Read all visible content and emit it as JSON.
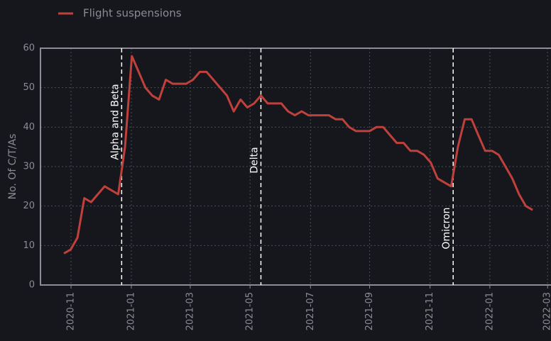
{
  "chart_data": {
    "type": "line",
    "ylabel": "No. Of C/T/As",
    "series": [
      {
        "name": "Flight suspensions",
        "color": "#c0403c",
        "values": [
          8,
          9,
          12,
          22,
          21,
          23,
          25,
          24,
          23,
          35,
          58,
          54,
          50,
          48,
          47,
          52,
          51,
          51,
          51,
          52,
          54,
          54,
          52,
          50,
          48,
          44,
          47,
          45,
          46,
          48,
          46,
          46,
          46,
          44,
          43,
          44,
          43,
          43,
          43,
          43,
          42,
          42,
          40,
          39,
          39,
          39,
          40,
          40,
          38,
          36,
          36,
          34,
          34,
          33,
          31,
          27,
          26,
          25,
          35,
          42,
          42,
          38,
          34,
          34,
          33,
          30,
          27,
          23,
          20,
          19
        ]
      }
    ],
    "xlim": [
      -3.45,
      71.7
    ],
    "xticks": [
      {
        "value": 1.05,
        "label": "2020-11"
      },
      {
        "value": 9.93,
        "label": "2021-01"
      },
      {
        "value": 18.6,
        "label": "2021-03"
      },
      {
        "value": 27.4,
        "label": "2021-05"
      },
      {
        "value": 36.3,
        "label": "2021-07"
      },
      {
        "value": 45.0,
        "label": "2021-09"
      },
      {
        "value": 53.9,
        "label": "2021-11"
      },
      {
        "value": 62.7,
        "label": "2022-01"
      },
      {
        "value": 71.2,
        "label": "2022-03"
      }
    ],
    "ylim": [
      0,
      60
    ],
    "yticks": [
      0,
      10,
      20,
      30,
      40,
      50,
      60
    ],
    "grid": true,
    "annotations": [
      {
        "x": 8.5,
        "label": "Alpha and Beta"
      },
      {
        "x": 29.0,
        "label": "Delta"
      },
      {
        "x": 57.3,
        "label": "Omicron"
      }
    ]
  }
}
